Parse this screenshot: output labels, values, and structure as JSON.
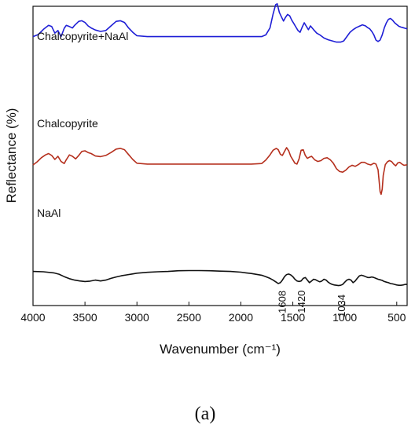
{
  "caption": "(a)",
  "chart_data": {
    "type": "line",
    "title": "",
    "xlabel": "Wavenumber (cm⁻¹)",
    "ylabel": "Reflectance (%)",
    "xlim": [
      4000,
      400
    ],
    "x_reversed": true,
    "y_ticks_shown": false,
    "xticks": [
      4000,
      3500,
      3000,
      2500,
      2000,
      1500,
      1000,
      500
    ],
    "grid": false,
    "legend": "none",
    "y_units": "arbitrary (offset traces)",
    "series": [
      {
        "name": "Chalcopyrite+NaAl",
        "color": "#1f1fd6",
        "x": [
          4000,
          3950,
          3900,
          3850,
          3820,
          3790,
          3760,
          3730,
          3700,
          3680,
          3650,
          3620,
          3600,
          3560,
          3530,
          3500,
          3470,
          3440,
          3400,
          3350,
          3300,
          3250,
          3200,
          3160,
          3120,
          3080,
          3040,
          3000,
          2900,
          2800,
          2700,
          2600,
          2500,
          2400,
          2300,
          2200,
          2100,
          2000,
          1900,
          1800,
          1760,
          1720,
          1690,
          1665,
          1650,
          1630,
          1610,
          1590,
          1570,
          1550,
          1530,
          1510,
          1490,
          1470,
          1450,
          1430,
          1410,
          1390,
          1370,
          1350,
          1330,
          1300,
          1270,
          1240,
          1200,
          1160,
          1120,
          1080,
          1040,
          1010,
          980,
          950,
          920,
          890,
          860,
          830,
          800,
          780,
          760,
          740,
          720,
          700,
          680,
          660,
          640,
          620,
          600,
          580,
          560,
          540,
          520,
          500,
          480,
          460,
          440,
          420,
          400
        ],
        "y": [
          2.2,
          2.32,
          2.62,
          2.85,
          2.78,
          2.4,
          2.55,
          2.2,
          2.68,
          2.85,
          2.78,
          2.7,
          2.85,
          3.08,
          3.12,
          3.02,
          2.82,
          2.7,
          2.58,
          2.5,
          2.55,
          2.82,
          3.08,
          3.12,
          3.02,
          2.7,
          2.45,
          2.25,
          2.2,
          2.2,
          2.2,
          2.2,
          2.2,
          2.2,
          2.2,
          2.2,
          2.2,
          2.2,
          2.2,
          2.2,
          2.3,
          2.7,
          3.5,
          4.05,
          4.1,
          3.6,
          3.35,
          3.1,
          3.32,
          3.48,
          3.4,
          3.15,
          2.95,
          2.75,
          2.55,
          2.45,
          2.75,
          3.0,
          2.8,
          2.6,
          2.82,
          2.6,
          2.4,
          2.3,
          2.12,
          2.02,
          1.95,
          1.88,
          1.88,
          1.95,
          2.2,
          2.45,
          2.6,
          2.72,
          2.8,
          2.88,
          2.82,
          2.72,
          2.65,
          2.5,
          2.3,
          2.0,
          1.92,
          2.0,
          2.3,
          2.7,
          3.0,
          3.2,
          3.25,
          3.15,
          3.0,
          2.9,
          2.8,
          2.75,
          2.72,
          2.68,
          2.65
        ]
      },
      {
        "name": "Chalcopyrite",
        "color": "#b5301e",
        "x": [
          4000,
          3960,
          3920,
          3880,
          3850,
          3820,
          3790,
          3760,
          3730,
          3700,
          3680,
          3650,
          3620,
          3590,
          3560,
          3530,
          3500,
          3470,
          3440,
          3400,
          3350,
          3300,
          3250,
          3200,
          3160,
          3120,
          3080,
          3040,
          3000,
          2900,
          2800,
          2700,
          2600,
          2500,
          2400,
          2300,
          2200,
          2100,
          2000,
          1900,
          1800,
          1760,
          1720,
          1690,
          1660,
          1640,
          1620,
          1600,
          1580,
          1560,
          1540,
          1520,
          1500,
          1480,
          1460,
          1440,
          1420,
          1400,
          1380,
          1360,
          1340,
          1320,
          1290,
          1260,
          1230,
          1200,
          1170,
          1140,
          1110,
          1080,
          1050,
          1020,
          990,
          960,
          930,
          900,
          870,
          840,
          810,
          780,
          750,
          720,
          700,
          680,
          670,
          660,
          650,
          640,
          630,
          610,
          590,
          570,
          550,
          530,
          510,
          490,
          470,
          450,
          430,
          410,
          400
        ],
        "y": [
          0.0,
          0.18,
          0.42,
          0.58,
          0.66,
          0.55,
          0.32,
          0.5,
          0.2,
          0.08,
          0.3,
          0.58,
          0.5,
          0.35,
          0.55,
          0.78,
          0.82,
          0.72,
          0.66,
          0.52,
          0.48,
          0.55,
          0.72,
          0.92,
          0.96,
          0.88,
          0.6,
          0.32,
          0.1,
          0.05,
          0.05,
          0.05,
          0.05,
          0.05,
          0.05,
          0.05,
          0.05,
          0.05,
          0.05,
          0.05,
          0.08,
          0.28,
          0.58,
          0.85,
          0.96,
          0.88,
          0.62,
          0.55,
          0.78,
          1.0,
          0.82,
          0.5,
          0.3,
          0.1,
          0.05,
          0.35,
          0.85,
          0.88,
          0.55,
          0.38,
          0.45,
          0.5,
          0.3,
          0.2,
          0.25,
          0.38,
          0.42,
          0.3,
          0.1,
          -0.22,
          -0.38,
          -0.42,
          -0.3,
          -0.12,
          -0.02,
          -0.08,
          0.02,
          0.15,
          0.15,
          0.05,
          0.0,
          0.1,
          0.05,
          -0.28,
          -0.9,
          -1.55,
          -1.7,
          -1.4,
          -0.6,
          0.02,
          0.18,
          0.25,
          0.2,
          0.05,
          -0.05,
          0.12,
          0.15,
          0.05,
          -0.02,
          0.0,
          0.02
        ]
      },
      {
        "name": "NaAl",
        "color": "#111111",
        "x": [
          4000,
          3900,
          3800,
          3750,
          3700,
          3650,
          3600,
          3550,
          3500,
          3450,
          3400,
          3350,
          3300,
          3250,
          3200,
          3150,
          3100,
          3050,
          3000,
          2900,
          2800,
          2700,
          2600,
          2500,
          2400,
          2300,
          2200,
          2100,
          2000,
          1950,
          1900,
          1850,
          1800,
          1760,
          1720,
          1690,
          1660,
          1640,
          1620,
          1600,
          1580,
          1560,
          1540,
          1520,
          1500,
          1480,
          1460,
          1440,
          1420,
          1400,
          1380,
          1360,
          1340,
          1320,
          1300,
          1280,
          1260,
          1240,
          1220,
          1200,
          1180,
          1160,
          1140,
          1120,
          1100,
          1080,
          1060,
          1040,
          1020,
          1000,
          980,
          960,
          940,
          920,
          900,
          880,
          860,
          840,
          820,
          800,
          780,
          760,
          740,
          720,
          700,
          680,
          660,
          640,
          620,
          600,
          580,
          560,
          540,
          520,
          500,
          480,
          460,
          440,
          420,
          400
        ],
        "y": [
          -1.8,
          -1.82,
          -1.88,
          -1.96,
          -2.1,
          -2.22,
          -2.3,
          -2.35,
          -2.38,
          -2.36,
          -2.3,
          -2.35,
          -2.3,
          -2.2,
          -2.12,
          -2.05,
          -2.0,
          -1.95,
          -1.9,
          -1.85,
          -1.82,
          -1.8,
          -1.76,
          -1.75,
          -1.75,
          -1.76,
          -1.78,
          -1.8,
          -1.84,
          -1.88,
          -1.92,
          -1.97,
          -2.02,
          -2.1,
          -2.2,
          -2.3,
          -2.42,
          -2.5,
          -2.45,
          -2.3,
          -2.1,
          -1.98,
          -1.95,
          -2.0,
          -2.1,
          -2.25,
          -2.35,
          -2.38,
          -2.35,
          -2.2,
          -2.15,
          -2.3,
          -2.45,
          -2.35,
          -2.25,
          -2.28,
          -2.35,
          -2.4,
          -2.35,
          -2.25,
          -2.3,
          -2.42,
          -2.5,
          -2.55,
          -2.58,
          -2.6,
          -2.62,
          -2.6,
          -2.55,
          -2.42,
          -2.3,
          -2.25,
          -2.3,
          -2.45,
          -2.35,
          -2.2,
          -2.06,
          -2.02,
          -2.05,
          -2.1,
          -2.15,
          -2.15,
          -2.12,
          -2.15,
          -2.2,
          -2.25,
          -2.28,
          -2.32,
          -2.38,
          -2.42,
          -2.45,
          -2.5,
          -2.52,
          -2.55,
          -2.58,
          -2.6,
          -2.6,
          -2.58,
          -2.55,
          -2.55
        ]
      }
    ],
    "annotations": [
      {
        "text": "1608",
        "x": 1608
      },
      {
        "text": "1420",
        "x": 1420
      },
      {
        "text": "1034",
        "x": 1034
      }
    ]
  }
}
